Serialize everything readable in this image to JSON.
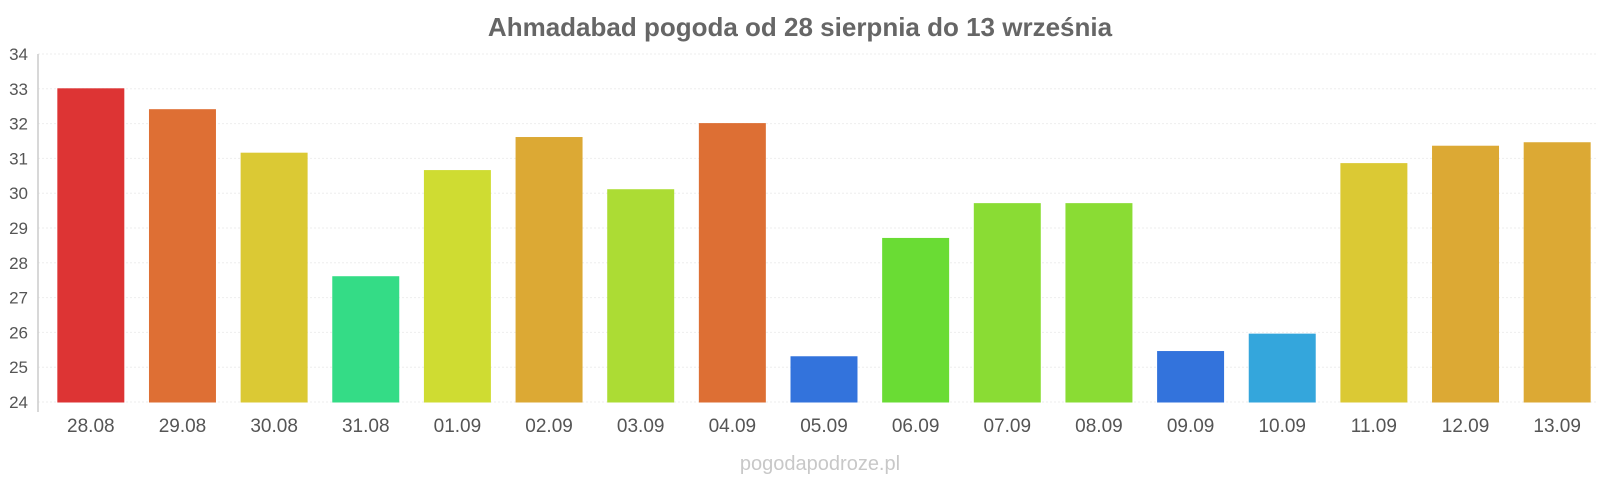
{
  "chart_data": {
    "type": "bar",
    "title": "Ahmadabad pogoda od 28 sierpnia do 13 września",
    "xlabel": "",
    "ylabel": "",
    "ylim": [
      24,
      34
    ],
    "yticks": [
      24,
      25,
      26,
      27,
      28,
      29,
      30,
      31,
      32,
      33,
      34
    ],
    "grid": true,
    "categories": [
      "28.08",
      "29.08",
      "30.08",
      "31.08",
      "01.09",
      "02.09",
      "03.09",
      "04.09",
      "05.09",
      "06.09",
      "07.09",
      "08.09",
      "09.09",
      "10.09",
      "11.09",
      "12.09",
      "13.09"
    ],
    "values": [
      33.0,
      32.4,
      31.15,
      27.6,
      30.65,
      31.6,
      30.1,
      32.0,
      25.3,
      28.7,
      29.7,
      29.7,
      25.45,
      25.95,
      30.85,
      31.35,
      31.45
    ],
    "colors": [
      "#dd3434",
      "#de6f34",
      "#dbc934",
      "#34dc86",
      "#cfdc32",
      "#dca934",
      "#acdc34",
      "#dd6f34",
      "#3373dc",
      "#6adc34",
      "#8adc34",
      "#8adc34",
      "#3373dc",
      "#34a6dc",
      "#dbc934",
      "#dca934",
      "#dca934"
    ]
  },
  "watermark": "pogodapodroze.pl"
}
